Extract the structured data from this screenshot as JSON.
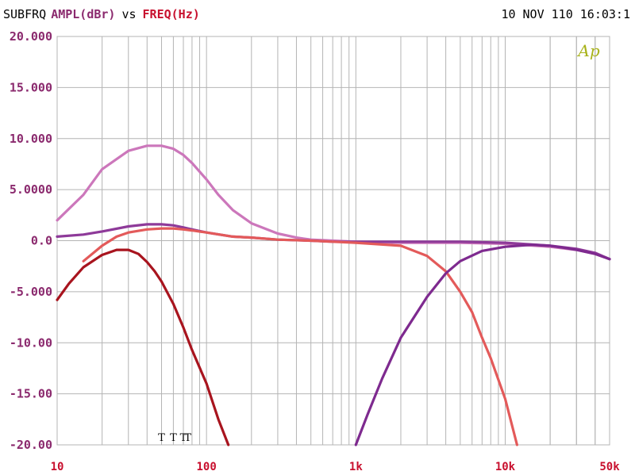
{
  "header": {
    "source": "SUBFRQ",
    "yquantity": "AMPL(dBr)",
    "vs": "vs",
    "xquantity": "FREQ(Hz)",
    "timestamp": "10 NOV 110 16:03:1"
  },
  "logo": {
    "text": "Ap"
  },
  "markers": {
    "labels": [
      "T",
      "T",
      "T",
      "T"
    ],
    "freqs": [
      50,
      60,
      70,
      75
    ]
  },
  "colors": {
    "background": "#ffffff",
    "grid": "#b4b4b4",
    "ytick": "#8b2a6e",
    "xtick": "#c8102e",
    "yquantity": "#8b2a6e",
    "xquantity": "#c8102e",
    "logo": "#a8b21a"
  },
  "chart_data": {
    "type": "line",
    "title": "",
    "xlabel": "FREQ(Hz)",
    "ylabel": "AMPL(dBr)",
    "x_scale": "log",
    "xlim": [
      10,
      50000
    ],
    "ylim": [
      -20,
      20
    ],
    "grid": true,
    "legend": "none",
    "yticks": [
      {
        "value": 20,
        "label": "20.000"
      },
      {
        "value": 15,
        "label": "15.000"
      },
      {
        "value": 10,
        "label": "10.000"
      },
      {
        "value": 5,
        "label": "5.0000"
      },
      {
        "value": 0,
        "label": "0.0"
      },
      {
        "value": -5,
        "label": "-5.000"
      },
      {
        "value": -10,
        "label": "-10.00"
      },
      {
        "value": -15,
        "label": "-15.00"
      },
      {
        "value": -20,
        "label": "-20.00"
      }
    ],
    "xticks": [
      {
        "value": 10,
        "label": "10"
      },
      {
        "value": 100,
        "label": "100"
      },
      {
        "value": 1000,
        "label": "1k"
      },
      {
        "value": 10000,
        "label": "10k"
      },
      {
        "value": 50000,
        "label": "50k"
      }
    ],
    "series": [
      {
        "color": "#cc77bb",
        "x": [
          10,
          15,
          20,
          30,
          40,
          50,
          60,
          70,
          80,
          100,
          120,
          150,
          200,
          300,
          400,
          500,
          700,
          1000,
          2000,
          5000,
          10000,
          20000,
          30000,
          40000,
          50000
        ],
        "y": [
          2.0,
          4.5,
          7.0,
          8.8,
          9.3,
          9.3,
          9.0,
          8.4,
          7.6,
          6.0,
          4.5,
          3.0,
          1.7,
          0.7,
          0.3,
          0.1,
          0.0,
          -0.1,
          -0.2,
          -0.2,
          -0.3,
          -0.6,
          -0.9,
          -1.3,
          -1.8
        ]
      },
      {
        "color": "#8e3a99",
        "x": [
          10,
          15,
          20,
          30,
          40,
          50,
          60,
          70,
          80,
          100,
          150,
          200,
          300,
          500,
          700,
          1000,
          2000,
          5000,
          10000,
          20000,
          30000,
          40000,
          50000
        ],
        "y": [
          0.4,
          0.6,
          0.9,
          1.4,
          1.6,
          1.6,
          1.5,
          1.3,
          1.1,
          0.8,
          0.4,
          0.3,
          0.1,
          0.0,
          -0.1,
          -0.1,
          -0.1,
          -0.1,
          -0.2,
          -0.5,
          -0.8,
          -1.2,
          -1.8
        ]
      },
      {
        "color": "#e35a5a",
        "x": [
          15,
          20,
          25,
          30,
          40,
          50,
          60,
          70,
          80,
          100,
          150,
          200,
          300,
          500,
          700,
          1000,
          2000,
          3000,
          4000,
          5000,
          6000,
          7000,
          8000,
          10000,
          12000
        ],
        "y": [
          -2.0,
          -0.5,
          0.4,
          0.8,
          1.1,
          1.2,
          1.2,
          1.1,
          1.0,
          0.8,
          0.4,
          0.3,
          0.1,
          0.0,
          -0.1,
          -0.2,
          -0.5,
          -1.5,
          -3.0,
          -5.0,
          -7.0,
          -9.5,
          -11.5,
          -15.5,
          -20.0
        ]
      },
      {
        "color": "#a8141e",
        "x": [
          10,
          12,
          15,
          20,
          25,
          30,
          35,
          40,
          45,
          50,
          60,
          70,
          80,
          100,
          120,
          140
        ],
        "y": [
          -5.8,
          -4.2,
          -2.6,
          -1.4,
          -0.9,
          -0.9,
          -1.3,
          -2.1,
          -3.0,
          -4.0,
          -6.2,
          -8.5,
          -10.7,
          -14.0,
          -17.5,
          -20.0
        ]
      },
      {
        "color": "#7e2a8f",
        "x": [
          1000,
          1200,
          1500,
          2000,
          3000,
          4000,
          5000,
          7000,
          10000,
          15000,
          20000,
          25000,
          30000,
          40000,
          50000
        ],
        "y": [
          -20.0,
          -17.0,
          -13.5,
          -9.5,
          -5.5,
          -3.2,
          -2.0,
          -1.0,
          -0.6,
          -0.4,
          -0.5,
          -0.7,
          -0.9,
          -1.3,
          -1.8
        ]
      }
    ]
  }
}
